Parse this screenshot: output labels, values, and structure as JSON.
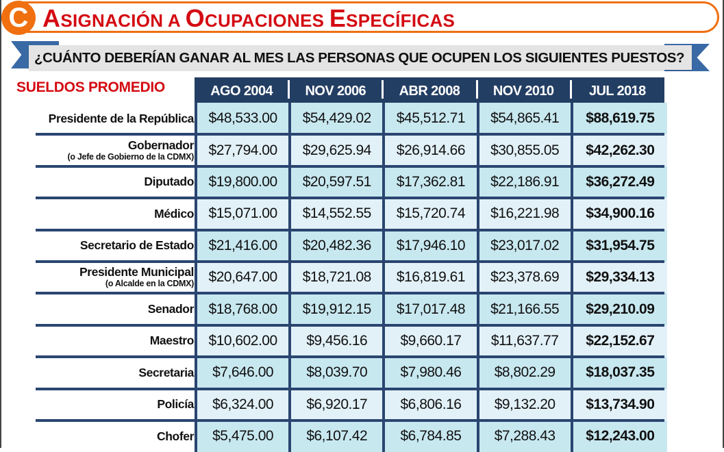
{
  "header": {
    "badge_letter": "C",
    "title_first_letter_1": "A",
    "title_rest_1": "SIGNACIÓN A ",
    "title_first_letter_2": "O",
    "title_rest_2": "CUPACIONES ",
    "title_first_letter_3": "E",
    "title_rest_3": "SPECÍFICAS",
    "title_full": "Asignación a Ocupaciones Específicas",
    "subtitle": "¿CUÁNTO DEBERÍAN GANAR AL MES LAS PERSONAS QUE OCUPEN LOS SIGUIENTES PUESTOS?"
  },
  "colors": {
    "accent_orange": "#f07010",
    "title_red": "#d40a12",
    "ribbon_blue": "#3a6aa5",
    "table_header_navy": "#233e63",
    "row_light_blue": "#c8e8f0",
    "row_pale_blue": "#e2f1f8"
  },
  "table": {
    "section_label": "SUELDOS PROMEDIO",
    "columns": [
      "AGO 2004",
      "NOV 2006",
      "ABR 2008",
      "NOV 2010",
      "JUL 2018"
    ],
    "rows": [
      {
        "label": "Presidente de la República",
        "sublabel": "",
        "values": [
          "$48,533.00",
          "$54,429.02",
          "$45,512.71",
          "$54,865.41",
          "$88,619.75"
        ]
      },
      {
        "label": "Gobernador",
        "sublabel": "(o Jefe de Gobierno de la CDMX)",
        "values": [
          "$27,794.00",
          "$29,625.94",
          "$26,914.66",
          "$30,855.05",
          "$42,262.30"
        ]
      },
      {
        "label": "Diputado",
        "sublabel": "",
        "values": [
          "$19,800.00",
          "$20,597.51",
          "$17,362.81",
          "$22,186.91",
          "$36,272.49"
        ]
      },
      {
        "label": "Médico",
        "sublabel": "",
        "values": [
          "$15,071.00",
          "$14,552.55",
          "$15,720.74",
          "$16,221.98",
          "$34,900.16"
        ]
      },
      {
        "label": "Secretario de Estado",
        "sublabel": "",
        "values": [
          "$21,416.00",
          "$20,482.36",
          "$17,946.10",
          "$23,017.02",
          "$31,954.75"
        ]
      },
      {
        "label": "Presidente Municipal",
        "sublabel": "(o Alcalde en la CDMX)",
        "values": [
          "$20,647.00",
          "$18,721.08",
          "$16,819.61",
          "$23,378.69",
          "$29,334.13"
        ]
      },
      {
        "label": "Senador",
        "sublabel": "",
        "values": [
          "$18,768.00",
          "$19,912.15",
          "$17,017.48",
          "$21,166.55",
          "$29,210.09"
        ]
      },
      {
        "label": "Maestro",
        "sublabel": "",
        "values": [
          "$10,602.00",
          "$9,456.16",
          "$9,660.17",
          "$11,637.77",
          "$22,152.67"
        ]
      },
      {
        "label": "Secretaria",
        "sublabel": "",
        "values": [
          "$7,646.00",
          "$8,039.70",
          "$7,980.46",
          "$8,802.29",
          "$18,037.35"
        ]
      },
      {
        "label": "Policía",
        "sublabel": "",
        "values": [
          "$6,324.00",
          "$6,920.17",
          "$6,806.16",
          "$9,132.20",
          "$13,734.90"
        ]
      },
      {
        "label": "Chofer",
        "sublabel": "",
        "values": [
          "$5,475.00",
          "$6,107.42",
          "$6,784.85",
          "$7,288.43",
          "$12,243.00"
        ]
      }
    ]
  }
}
